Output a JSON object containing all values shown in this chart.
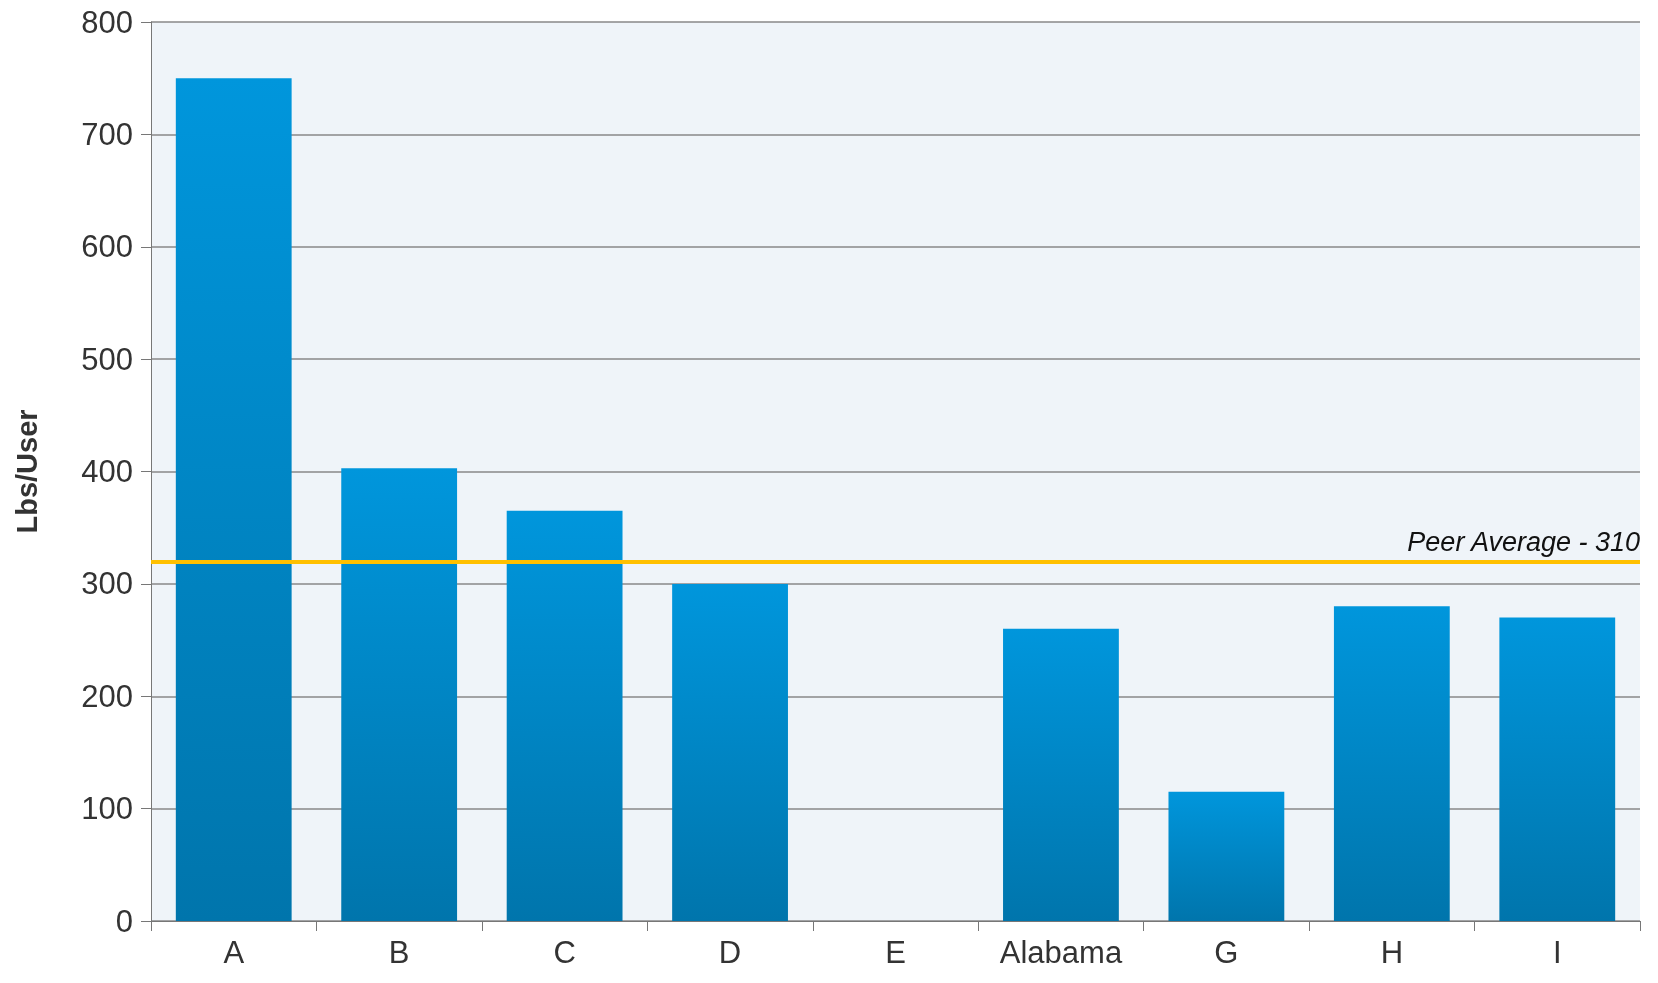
{
  "chart_data": {
    "type": "bar",
    "ylabel": "Lbs/User",
    "categories": [
      "A",
      "B",
      "C",
      "D",
      "E",
      "Alabama",
      "G",
      "H",
      "I"
    ],
    "values": [
      750,
      403,
      365,
      300,
      0,
      260,
      115,
      280,
      270
    ],
    "color": "#0096dc",
    "ylim": [
      0,
      800
    ],
    "yticks": [
      0,
      100,
      200,
      300,
      400,
      500,
      600,
      700,
      800
    ],
    "grid": "y",
    "ref_lines": [
      {
        "axis": "y",
        "value": 320,
        "label": "Peer Average - 310",
        "color": "#ffc000"
      }
    ]
  }
}
